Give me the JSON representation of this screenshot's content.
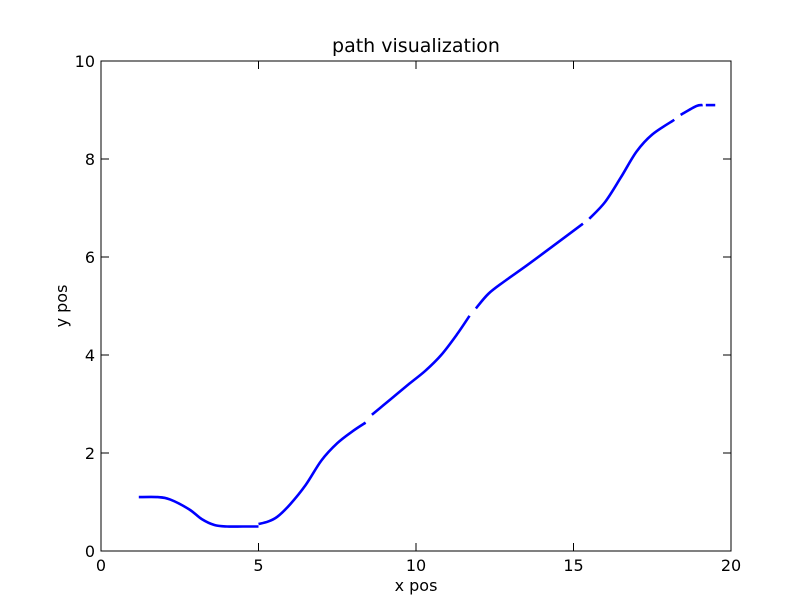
{
  "chart_data": {
    "type": "line",
    "title": "path visualization",
    "xlabel": "x pos",
    "ylabel": "y pos",
    "xlim": [
      0,
      20
    ],
    "ylim": [
      0,
      10
    ],
    "xticks": [
      0,
      5,
      10,
      15,
      20
    ],
    "yticks": [
      0,
      2,
      4,
      6,
      8,
      10
    ],
    "x_tick_labels": [
      "0",
      "5",
      "10",
      "15",
      "20"
    ],
    "y_tick_labels": [
      "0",
      "2",
      "4",
      "6",
      "8",
      "10"
    ],
    "grid": false,
    "series": [
      {
        "color": "#0000ff",
        "segments": [
          {
            "x": [
              1.2,
              1.8,
              2.2,
              2.8,
              3.2,
              3.6,
              4.0,
              4.5,
              5.0
            ],
            "y": [
              1.1,
              1.1,
              1.05,
              0.85,
              0.65,
              0.53,
              0.5,
              0.5,
              0.5
            ]
          },
          {
            "x": [
              5.0,
              5.3,
              5.6,
              6.0,
              6.5,
              7.0,
              7.5,
              8.0,
              8.4
            ],
            "y": [
              0.55,
              0.6,
              0.7,
              0.95,
              1.35,
              1.85,
              2.2,
              2.45,
              2.62
            ]
          },
          {
            "x": [
              8.6,
              9.2,
              9.8,
              10.3,
              10.8,
              11.3,
              11.7
            ],
            "y": [
              2.78,
              3.1,
              3.42,
              3.68,
              4.0,
              4.42,
              4.8
            ]
          },
          {
            "x": [
              11.9,
              12.3,
              12.8,
              13.5,
              14.3,
              15.3
            ],
            "y": [
              4.95,
              5.25,
              5.5,
              5.82,
              6.2,
              6.68
            ]
          },
          {
            "x": [
              15.5,
              16.0,
              16.5,
              17.0,
              17.5,
              18.2
            ],
            "y": [
              6.78,
              7.12,
              7.62,
              8.15,
              8.5,
              8.8
            ]
          },
          {
            "x": [
              18.4,
              18.9,
              19.1
            ],
            "y": [
              8.9,
              9.08,
              9.1
            ]
          },
          {
            "x": [
              19.2,
              19.5
            ],
            "y": [
              9.1,
              9.1
            ]
          }
        ]
      }
    ]
  }
}
